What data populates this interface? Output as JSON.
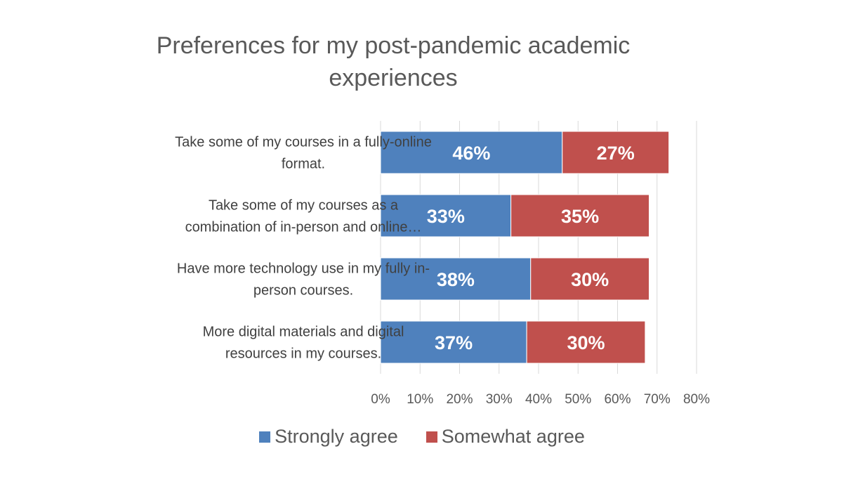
{
  "chart_data": {
    "type": "bar",
    "orientation": "horizontal",
    "stacked": true,
    "title": "Preferences for my post-pandemic academic experiences",
    "categories": [
      "Take some of my courses in a fully-online format.",
      "Take some of my courses as a combination of in-person and online…",
      "Have more technology use in my fully in-person courses.",
      "More digital materials and digital resources in my courses."
    ],
    "category_lines": [
      [
        "Take some of my courses in a fully-online",
        "format."
      ],
      [
        "Take some of my courses as a",
        "combination of in-person and online…"
      ],
      [
        "Have more technology use in my fully in-",
        "person courses."
      ],
      [
        "More digital materials and digital",
        "resources in my courses."
      ]
    ],
    "series": [
      {
        "name": "Strongly agree",
        "color": "#4F81BD",
        "values": [
          46,
          33,
          38,
          37
        ],
        "labels": [
          "46%",
          "33%",
          "38%",
          "37%"
        ]
      },
      {
        "name": "Somewhat agree",
        "color": "#C0504D",
        "values": [
          27,
          35,
          30,
          30
        ],
        "labels": [
          "27%",
          "35%",
          "30%",
          "30%"
        ]
      }
    ],
    "xlim": [
      0,
      80
    ],
    "xticks": [
      "0%",
      "10%",
      "20%",
      "30%",
      "40%",
      "50%",
      "60%",
      "70%",
      "80%"
    ],
    "grid": true,
    "legend_position": "bottom"
  }
}
